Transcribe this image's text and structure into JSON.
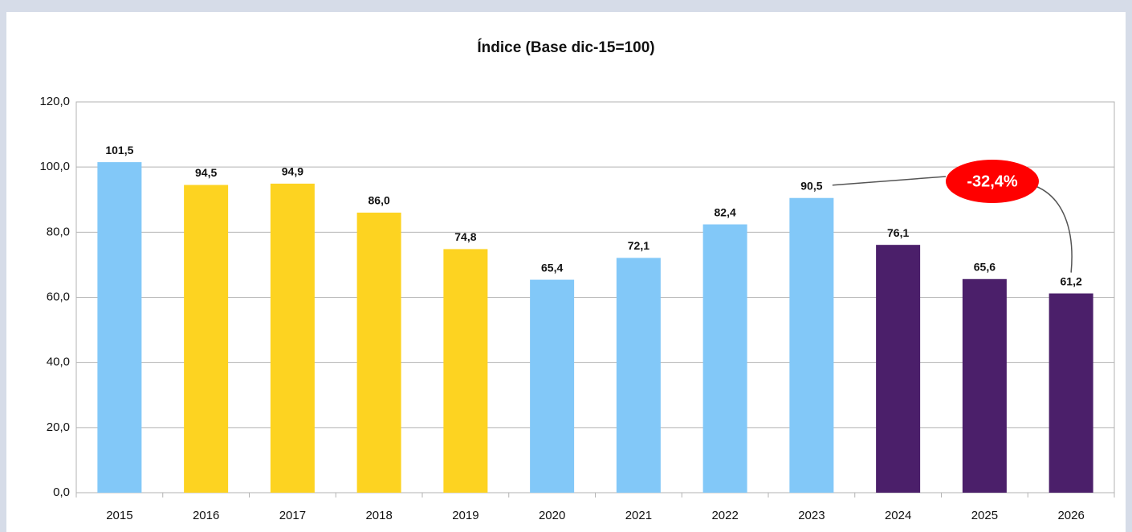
{
  "chart_data": {
    "type": "bar",
    "title": "Índice (Base dic-15=100)",
    "categories": [
      "2015",
      "2016",
      "2017",
      "2018",
      "2019",
      "2020",
      "2021",
      "2022",
      "2023",
      "2024",
      "2025",
      "2026"
    ],
    "values": [
      101.5,
      94.5,
      94.9,
      86.0,
      74.8,
      65.4,
      72.1,
      82.4,
      90.5,
      76.1,
      65.6,
      61.2
    ],
    "value_labels": [
      "101,5",
      "94,5",
      "94,9",
      "86,0",
      "74,8",
      "65,4",
      "72,1",
      "82,4",
      "90,5",
      "76,1",
      "65,6",
      "61,2"
    ],
    "colors": [
      "#82c8f8",
      "#fdd321",
      "#fdd321",
      "#fdd321",
      "#fdd321",
      "#82c8f8",
      "#82c8f8",
      "#82c8f8",
      "#82c8f8",
      "#4b1f6a",
      "#4b1f6a",
      "#4b1f6a"
    ],
    "ylim": [
      0,
      120
    ],
    "yticks": [
      {
        "value": 0,
        "label": "0,0"
      },
      {
        "value": 20,
        "label": "20,0"
      },
      {
        "value": 40,
        "label": "40,0"
      },
      {
        "value": 60,
        "label": "60,0"
      },
      {
        "value": 80,
        "label": "80,0"
      },
      {
        "value": 100,
        "label": "100,0"
      },
      {
        "value": 120,
        "label": "120,0"
      }
    ],
    "grid": true,
    "annotation": {
      "text": "-32,4%",
      "color": "#ff0000"
    }
  }
}
